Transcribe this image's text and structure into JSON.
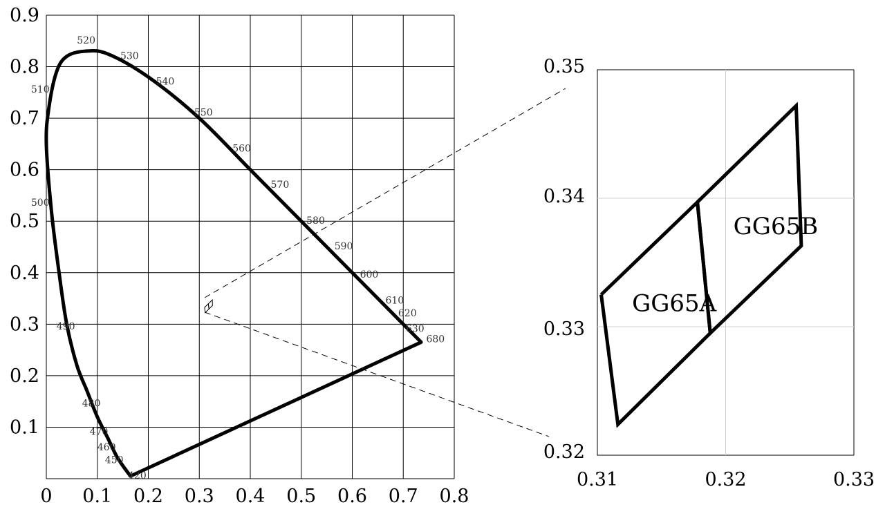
{
  "chart_data": [
    {
      "type": "line",
      "title": "",
      "xlabel": "",
      "ylabel": "",
      "xlim": [
        0,
        0.8
      ],
      "ylim": [
        0,
        0.9
      ],
      "x_tick_labels": [
        "0",
        "0.1",
        "0.2",
        "0.3",
        "0.4",
        "0.5",
        "0.6",
        "0.7",
        "0.8"
      ],
      "y_tick_labels": [
        "0.1",
        "0.2",
        "0.3",
        "0.4",
        "0.5",
        "0.6",
        "0.7",
        "0.8",
        "0.9"
      ],
      "grid": true,
      "series": [
        {
          "points": [
            [
              0.165,
              0.005
            ],
            [
              0.14,
              0.04
            ],
            [
              0.12,
              0.08
            ],
            [
              0.1,
              0.12
            ],
            [
              0.08,
              0.17
            ],
            [
              0.06,
              0.22
            ],
            [
              0.04,
              0.3
            ],
            [
              0.025,
              0.4
            ],
            [
              0.01,
              0.52
            ],
            [
              0.0,
              0.65
            ],
            [
              0.005,
              0.72
            ],
            [
              0.02,
              0.79
            ],
            [
              0.04,
              0.82
            ],
            [
              0.075,
              0.83
            ],
            [
              0.12,
              0.825
            ],
            [
              0.2,
              0.78
            ],
            [
              0.3,
              0.7
            ],
            [
              0.4,
              0.6
            ],
            [
              0.5,
              0.5
            ],
            [
              0.6,
              0.4
            ],
            [
              0.7,
              0.3
            ],
            [
              0.735,
              0.265
            ],
            [
              0.165,
              0.005
            ]
          ]
        }
      ],
      "annotations": [
        {
          "text": "420",
          "x": 0.16,
          "y": 0.0
        },
        {
          "text": "450",
          "x": 0.115,
          "y": 0.03
        },
        {
          "text": "460",
          "x": 0.1,
          "y": 0.055
        },
        {
          "text": "470",
          "x": 0.085,
          "y": 0.085
        },
        {
          "text": "480",
          "x": 0.07,
          "y": 0.14
        },
        {
          "text": "490",
          "x": 0.02,
          "y": 0.29
        },
        {
          "text": "500",
          "x": -0.03,
          "y": 0.53
        },
        {
          "text": "510",
          "x": -0.03,
          "y": 0.75
        },
        {
          "text": "520",
          "x": 0.06,
          "y": 0.845
        },
        {
          "text": "530",
          "x": 0.145,
          "y": 0.815
        },
        {
          "text": "540",
          "x": 0.215,
          "y": 0.765
        },
        {
          "text": "550",
          "x": 0.29,
          "y": 0.705
        },
        {
          "text": "560",
          "x": 0.365,
          "y": 0.635
        },
        {
          "text": "570",
          "x": 0.44,
          "y": 0.565
        },
        {
          "text": "580",
          "x": 0.51,
          "y": 0.495
        },
        {
          "text": "590",
          "x": 0.565,
          "y": 0.445
        },
        {
          "text": "600",
          "x": 0.615,
          "y": 0.39
        },
        {
          "text": "610",
          "x": 0.665,
          "y": 0.34
        },
        {
          "text": "620",
          "x": 0.69,
          "y": 0.315
        },
        {
          "text": "630",
          "x": 0.705,
          "y": 0.285
        },
        {
          "text": "680",
          "x": 0.745,
          "y": 0.265
        }
      ]
    },
    {
      "type": "line",
      "title": "",
      "xlabel": "",
      "ylabel": "",
      "xlim": [
        0.31,
        0.33
      ],
      "ylim": [
        0.32,
        0.35
      ],
      "x_tick_labels": [
        "0.31",
        "0.32",
        "0.33"
      ],
      "y_tick_labels": [
        "0.32",
        "0.33",
        "0.34",
        "0.35"
      ],
      "grid": true,
      "series": [
        {
          "name": "GG65A",
          "points": [
            [
              0.3103,
              0.3325
            ],
            [
              0.3116,
              0.3224
            ],
            [
              0.3188,
              0.3295
            ],
            [
              0.3178,
              0.3397
            ],
            [
              0.3103,
              0.3325
            ]
          ]
        },
        {
          "name": "GG65B",
          "points": [
            [
              0.3178,
              0.3397
            ],
            [
              0.3255,
              0.3472
            ],
            [
              0.3259,
              0.3363
            ],
            [
              0.3188,
              0.3295
            ],
            [
              0.3178,
              0.3397
            ]
          ]
        }
      ],
      "annotations": [
        {
          "text": "GG65A",
          "x": 0.3127,
          "y": 0.3312
        },
        {
          "text": "GG65B",
          "x": 0.3206,
          "y": 0.3372
        }
      ]
    }
  ]
}
